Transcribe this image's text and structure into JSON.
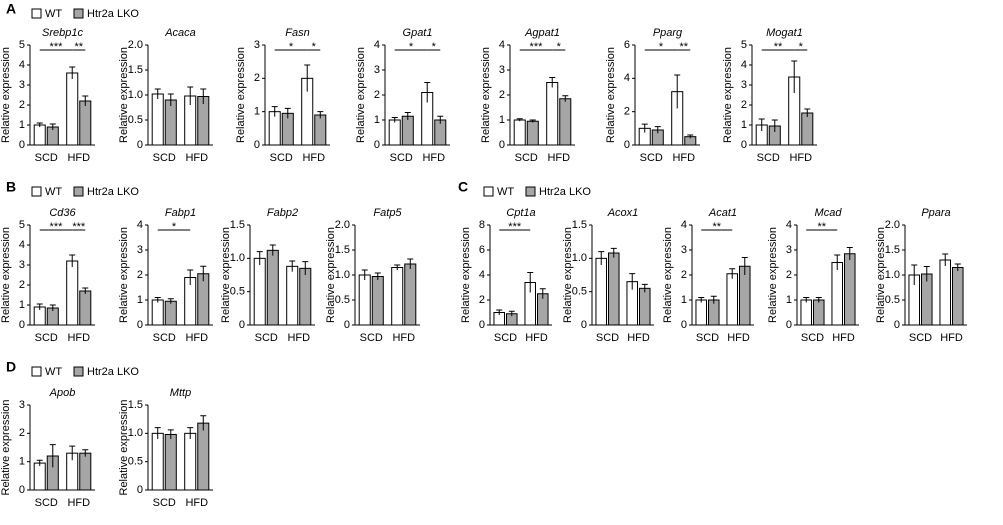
{
  "panel_labels": [
    "A",
    "B",
    "C",
    "D"
  ],
  "chart_data": [
    {
      "type": "bar",
      "title": "Srebp1c",
      "y_label": "Relative expression",
      "categories": [
        "SCD",
        "HFD"
      ],
      "series": [
        {
          "name": "WT",
          "color": "#ffffff",
          "values": [
            1.0,
            3.6
          ],
          "errors": [
            0.1,
            0.3
          ]
        },
        {
          "name": "Htr2a LKO",
          "color": "#a6a6a6",
          "values": [
            0.9,
            2.2
          ],
          "errors": [
            0.15,
            0.25
          ]
        }
      ],
      "ylim": [
        0,
        5
      ],
      "yticks": [
        0,
        1,
        2,
        3,
        4,
        5
      ],
      "sig_diet": "***",
      "sig_genotype": "**"
    },
    {
      "type": "bar",
      "title": "Acaca",
      "y_label": "Relative expression",
      "categories": [
        "SCD",
        "HFD"
      ],
      "series": [
        {
          "name": "WT",
          "color": "#ffffff",
          "values": [
            1.02,
            0.98
          ],
          "errors": [
            0.1,
            0.18
          ]
        },
        {
          "name": "Htr2a LKO",
          "color": "#a6a6a6",
          "values": [
            0.9,
            0.97
          ],
          "errors": [
            0.12,
            0.15
          ]
        }
      ],
      "ylim": [
        0,
        2
      ],
      "yticks": [
        0,
        0.5,
        {
          "value": 1,
          "label": "1.0"
        },
        1.5,
        {
          "value": 2,
          "label": "2.0"
        }
      ]
    },
    {
      "type": "bar",
      "title": "Fasn",
      "y_label": "Relative expression",
      "categories": [
        "SCD",
        "HFD"
      ],
      "series": [
        {
          "name": "WT",
          "color": "#ffffff",
          "values": [
            1.0,
            2.0
          ],
          "errors": [
            0.15,
            0.4
          ]
        },
        {
          "name": "Htr2a LKO",
          "color": "#a6a6a6",
          "values": [
            0.95,
            0.9
          ],
          "errors": [
            0.15,
            0.1
          ]
        }
      ],
      "ylim": [
        0,
        3
      ],
      "yticks": [
        0,
        1,
        2,
        3
      ],
      "sig_diet": "*",
      "sig_genotype": "*"
    },
    {
      "type": "bar",
      "title": "Gpat1",
      "y_label": "Relative expression",
      "categories": [
        "SCD",
        "HFD"
      ],
      "series": [
        {
          "name": "WT",
          "color": "#ffffff",
          "values": [
            1.0,
            2.1
          ],
          "errors": [
            0.1,
            0.4
          ]
        },
        {
          "name": "Htr2a LKO",
          "color": "#a6a6a6",
          "values": [
            1.15,
            1.0
          ],
          "errors": [
            0.15,
            0.15
          ]
        }
      ],
      "ylim": [
        0,
        4
      ],
      "yticks": [
        0,
        1,
        2,
        3,
        4
      ],
      "sig_diet": "*",
      "sig_genotype": "*"
    },
    {
      "type": "bar",
      "title": "Agpat1",
      "y_label": "Relative expression",
      "categories": [
        "SCD",
        "HFD"
      ],
      "series": [
        {
          "name": "WT",
          "color": "#ffffff",
          "values": [
            1.0,
            2.5
          ],
          "errors": [
            0.05,
            0.2
          ]
        },
        {
          "name": "Htr2a LKO",
          "color": "#a6a6a6",
          "values": [
            0.95,
            1.85
          ],
          "errors": [
            0.05,
            0.12
          ]
        }
      ],
      "ylim": [
        0,
        4
      ],
      "yticks": [
        0,
        1,
        2,
        3,
        4
      ],
      "sig_diet": "***",
      "sig_genotype": "*"
    },
    {
      "type": "bar",
      "title": "Pparg",
      "y_label": "Relative expression",
      "categories": [
        "SCD",
        "HFD"
      ],
      "series": [
        {
          "name": "WT",
          "color": "#ffffff",
          "values": [
            1.0,
            3.2
          ],
          "errors": [
            0.25,
            1.0
          ]
        },
        {
          "name": "Htr2a LKO",
          "color": "#a6a6a6",
          "values": [
            0.9,
            0.5
          ],
          "errors": [
            0.2,
            0.1
          ]
        }
      ],
      "ylim": [
        0,
        6
      ],
      "yticks": [
        0,
        2,
        4,
        6
      ],
      "sig_diet": "*",
      "sig_genotype": "**"
    },
    {
      "type": "bar",
      "title": "Mogat1",
      "y_label": "Relative expression",
      "categories": [
        "SCD",
        "HFD"
      ],
      "series": [
        {
          "name": "WT",
          "color": "#ffffff",
          "values": [
            1.0,
            3.4
          ],
          "errors": [
            0.3,
            0.8
          ]
        },
        {
          "name": "Htr2a LKO",
          "color": "#a6a6a6",
          "values": [
            0.95,
            1.6
          ],
          "errors": [
            0.3,
            0.2
          ]
        }
      ],
      "ylim": [
        0,
        5
      ],
      "yticks": [
        0,
        1,
        2,
        3,
        4,
        5
      ],
      "sig_diet": "**",
      "sig_genotype": "*"
    },
    {
      "type": "bar",
      "title": "Cd36",
      "y_label": "Relative expression",
      "categories": [
        "SCD",
        "HFD"
      ],
      "series": [
        {
          "name": "WT",
          "color": "#ffffff",
          "values": [
            0.9,
            3.2
          ],
          "errors": [
            0.15,
            0.3
          ]
        },
        {
          "name": "Htr2a LKO",
          "color": "#a6a6a6",
          "values": [
            0.85,
            1.7
          ],
          "errors": [
            0.15,
            0.15
          ]
        }
      ],
      "ylim": [
        0,
        5
      ],
      "yticks": [
        0,
        1,
        2,
        3,
        4,
        5
      ],
      "sig_diet": "***",
      "sig_genotype": "***"
    },
    {
      "type": "bar",
      "title": "Fabp1",
      "y_label": "Relative expression",
      "categories": [
        "SCD",
        "HFD"
      ],
      "series": [
        {
          "name": "WT",
          "color": "#ffffff",
          "values": [
            1.0,
            1.9
          ],
          "errors": [
            0.1,
            0.3
          ]
        },
        {
          "name": "Htr2a LKO",
          "color": "#a6a6a6",
          "values": [
            0.95,
            2.05
          ],
          "errors": [
            0.1,
            0.3
          ]
        }
      ],
      "ylim": [
        0,
        4
      ],
      "yticks": [
        0,
        1,
        2,
        3,
        4
      ],
      "sig_diet": "*"
    },
    {
      "type": "bar",
      "title": "Fabp2",
      "y_label": "Relative expression",
      "categories": [
        "SCD",
        "HFD"
      ],
      "series": [
        {
          "name": "WT",
          "color": "#ffffff",
          "values": [
            1.0,
            0.88
          ],
          "errors": [
            0.1,
            0.08
          ]
        },
        {
          "name": "Htr2a LKO",
          "color": "#a6a6a6",
          "values": [
            1.12,
            0.85
          ],
          "errors": [
            0.08,
            0.1
          ]
        }
      ],
      "ylim": [
        0,
        1.5
      ],
      "yticks": [
        0,
        0.5,
        {
          "value": 1,
          "label": "1.0"
        },
        1.5
      ]
    },
    {
      "type": "bar",
      "title": "Fatp5",
      "y_label": "Relative expression",
      "categories": [
        "SCD",
        "HFD"
      ],
      "series": [
        {
          "name": "WT",
          "color": "#ffffff",
          "values": [
            1.0,
            1.15
          ],
          "errors": [
            0.1,
            0.05
          ]
        },
        {
          "name": "Htr2a LKO",
          "color": "#a6a6a6",
          "values": [
            0.97,
            1.22
          ],
          "errors": [
            0.07,
            0.1
          ]
        }
      ],
      "ylim": [
        0,
        2
      ],
      "yticks": [
        0,
        0.5,
        {
          "value": 1,
          "label": "1.0"
        },
        1.5,
        {
          "value": 2,
          "label": "2.0"
        }
      ]
    },
    {
      "type": "bar",
      "title": "Cpt1a",
      "y_label": "Relative expression",
      "categories": [
        "SCD",
        "HFD"
      ],
      "series": [
        {
          "name": "WT",
          "color": "#ffffff",
          "values": [
            1.0,
            3.4
          ],
          "errors": [
            0.2,
            0.8
          ]
        },
        {
          "name": "Htr2a LKO",
          "color": "#a6a6a6",
          "values": [
            0.9,
            2.5
          ],
          "errors": [
            0.2,
            0.4
          ]
        }
      ],
      "ylim": [
        0,
        8
      ],
      "yticks": [
        0,
        2,
        4,
        6,
        8
      ],
      "sig_diet": "***"
    },
    {
      "type": "bar",
      "title": "Acox1",
      "y_label": "Relative expression",
      "categories": [
        "SCD",
        "HFD"
      ],
      "series": [
        {
          "name": "WT",
          "color": "#ffffff",
          "values": [
            1.0,
            0.65
          ],
          "errors": [
            0.1,
            0.12
          ]
        },
        {
          "name": "Htr2a LKO",
          "color": "#a6a6a6",
          "values": [
            1.08,
            0.55
          ],
          "errors": [
            0.07,
            0.06
          ]
        }
      ],
      "ylim": [
        0,
        1.5
      ],
      "yticks": [
        0,
        0.5,
        {
          "value": 1,
          "label": "1.0"
        },
        1.5
      ]
    },
    {
      "type": "bar",
      "title": "Acat1",
      "y_label": "Relative expression",
      "categories": [
        "SCD",
        "HFD"
      ],
      "series": [
        {
          "name": "WT",
          "color": "#ffffff",
          "values": [
            1.0,
            2.05
          ],
          "errors": [
            0.1,
            0.2
          ]
        },
        {
          "name": "Htr2a LKO",
          "color": "#a6a6a6",
          "values": [
            1.0,
            2.35
          ],
          "errors": [
            0.15,
            0.35
          ]
        }
      ],
      "ylim": [
        0,
        4
      ],
      "yticks": [
        0,
        1,
        2,
        3,
        4
      ],
      "sig_diet": "**"
    },
    {
      "type": "bar",
      "title": "Mcad",
      "y_label": "Relative expression",
      "categories": [
        "SCD",
        "HFD"
      ],
      "series": [
        {
          "name": "WT",
          "color": "#ffffff",
          "values": [
            1.0,
            2.5
          ],
          "errors": [
            0.1,
            0.3
          ]
        },
        {
          "name": "Htr2a LKO",
          "color": "#a6a6a6",
          "values": [
            1.0,
            2.85
          ],
          "errors": [
            0.1,
            0.25
          ]
        }
      ],
      "ylim": [
        0,
        4
      ],
      "yticks": [
        0,
        1,
        2,
        3,
        4
      ],
      "sig_diet": "**"
    },
    {
      "type": "bar",
      "title": "Ppara",
      "y_label": "Relative expression",
      "categories": [
        "SCD",
        "HFD"
      ],
      "series": [
        {
          "name": "WT",
          "color": "#ffffff",
          "values": [
            1.0,
            1.3
          ],
          "errors": [
            0.2,
            0.12
          ]
        },
        {
          "name": "Htr2a LKO",
          "color": "#a6a6a6",
          "values": [
            1.02,
            1.15
          ],
          "errors": [
            0.15,
            0.07
          ]
        }
      ],
      "ylim": [
        0,
        2
      ],
      "yticks": [
        0,
        0.5,
        {
          "value": 1,
          "label": "1.0"
        },
        1.5,
        {
          "value": 2,
          "label": "2.0"
        }
      ]
    },
    {
      "type": "bar",
      "title": "Apob",
      "y_label": "Relative expression",
      "categories": [
        "SCD",
        "HFD"
      ],
      "series": [
        {
          "name": "WT",
          "color": "#ffffff",
          "values": [
            0.95,
            1.3
          ],
          "errors": [
            0.1,
            0.25
          ]
        },
        {
          "name": "Htr2a LKO",
          "color": "#a6a6a6",
          "values": [
            1.2,
            1.3
          ],
          "errors": [
            0.4,
            0.12
          ]
        }
      ],
      "ylim": [
        0,
        3
      ],
      "yticks": [
        0,
        1,
        2,
        3
      ]
    },
    {
      "type": "bar",
      "title": "Mttp",
      "y_label": "Relative expression",
      "categories": [
        "SCD",
        "HFD"
      ],
      "series": [
        {
          "name": "WT",
          "color": "#ffffff",
          "values": [
            1.0,
            1.0
          ],
          "errors": [
            0.1,
            0.1
          ]
        },
        {
          "name": "Htr2a LKO",
          "color": "#a6a6a6",
          "values": [
            0.98,
            1.18
          ],
          "errors": [
            0.08,
            0.13
          ]
        }
      ],
      "ylim": [
        0,
        1.5
      ],
      "yticks": [
        0,
        0.5,
        {
          "value": 1,
          "label": "1.0"
        },
        1.5
      ]
    }
  ]
}
